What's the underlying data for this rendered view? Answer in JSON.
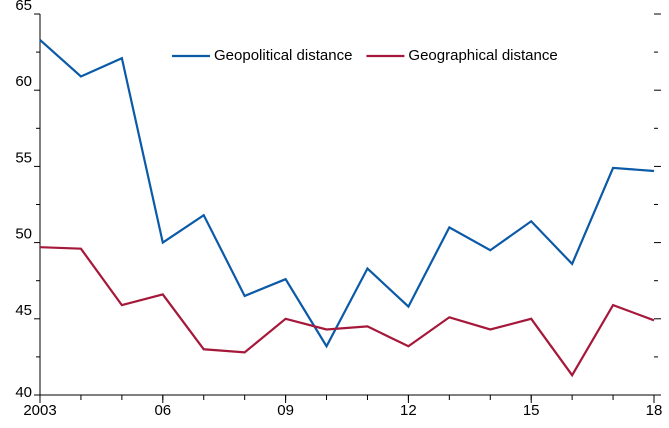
{
  "chart_data": {
    "type": "line",
    "x": [
      2003,
      2004,
      2005,
      2006,
      2007,
      2008,
      2009,
      2010,
      2011,
      2012,
      2013,
      2014,
      2015,
      2016,
      2017,
      2018
    ],
    "series": [
      {
        "name": "Geopolitical distance",
        "color": "#0a5aa8",
        "values": [
          63.3,
          60.9,
          62.1,
          50.0,
          51.8,
          46.5,
          47.6,
          43.2,
          48.3,
          45.8,
          51.0,
          49.5,
          51.4,
          48.6,
          54.9,
          54.7
        ]
      },
      {
        "name": "Geographical distance",
        "color": "#a6183a",
        "values": [
          49.7,
          49.6,
          45.9,
          46.6,
          43.0,
          42.8,
          45.0,
          44.3,
          44.5,
          43.2,
          45.1,
          44.3,
          45.0,
          41.3,
          45.9,
          44.9
        ]
      }
    ],
    "xlim": [
      2003,
      2018
    ],
    "xticks": [
      {
        "value": 2003,
        "label": "2003"
      },
      {
        "value": 2006,
        "label": "06"
      },
      {
        "value": 2009,
        "label": "09"
      },
      {
        "value": 2012,
        "label": "12"
      },
      {
        "value": 2015,
        "label": "15"
      },
      {
        "value": 2018,
        "label": "18"
      }
    ],
    "ylim": [
      40,
      65
    ],
    "yticks": [
      40,
      45,
      50,
      55,
      60,
      65
    ],
    "legend": "top"
  }
}
